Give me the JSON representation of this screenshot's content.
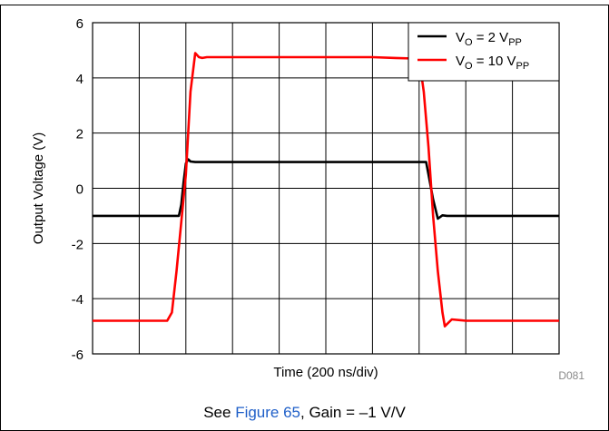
{
  "chart_data": {
    "type": "line",
    "xlabel": "Time (200 ns/div)",
    "ylabel": "Output Voltage (V)",
    "ylim": [
      -6,
      6
    ],
    "yticks": [
      6,
      4,
      2,
      0,
      -2,
      -4,
      -6
    ],
    "yticklabels": [
      "6",
      "4",
      "2",
      "0",
      "-2",
      "-4",
      "-6"
    ],
    "xlim": [
      0,
      10
    ],
    "x_divisions": 10,
    "grid": true,
    "legend_position": "top-right",
    "series": [
      {
        "name_parts": [
          "V",
          "O",
          " = 2 V",
          "PP"
        ],
        "color": "#000000",
        "x": [
          0,
          1.85,
          1.9,
          1.95,
          2.0,
          2.05,
          2.1,
          2.2,
          3.0,
          4.0,
          5.0,
          6.0,
          7.0,
          7.15,
          7.2,
          7.3,
          7.4,
          7.5,
          7.6,
          8.0,
          9.0,
          10
        ],
        "y": [
          -1.0,
          -1.0,
          -0.6,
          0.2,
          0.9,
          1.05,
          0.97,
          0.95,
          0.95,
          0.95,
          0.95,
          0.95,
          0.95,
          0.95,
          0.5,
          -0.4,
          -1.1,
          -0.98,
          -1.0,
          -1.0,
          -1.0,
          -1.0
        ]
      },
      {
        "name_parts": [
          "V",
          "O",
          " = 10 V",
          "PP"
        ],
        "color": "#ff0000",
        "x": [
          0,
          1.6,
          1.7,
          1.8,
          2.0,
          2.1,
          2.2,
          2.28,
          2.35,
          2.45,
          3.0,
          4.0,
          5.0,
          6.0,
          6.5,
          6.9,
          7.0,
          7.1,
          7.2,
          7.3,
          7.4,
          7.5,
          7.55,
          7.7,
          8.0,
          9.0,
          10
        ],
        "y": [
          -4.8,
          -4.8,
          -4.5,
          -3.0,
          0.5,
          3.5,
          4.9,
          4.75,
          4.72,
          4.75,
          4.75,
          4.75,
          4.75,
          4.75,
          4.72,
          4.7,
          4.7,
          3.5,
          1.5,
          -1.0,
          -3.0,
          -4.5,
          -5.0,
          -4.75,
          -4.8,
          -4.8,
          -4.8
        ]
      }
    ]
  },
  "watermark": "D081",
  "caption": {
    "prefix": "See ",
    "link": "Figure 65",
    "suffix": ", Gain = –1 V/V"
  },
  "colors": {
    "link": "#1f5fc8",
    "grid": "#000000"
  }
}
